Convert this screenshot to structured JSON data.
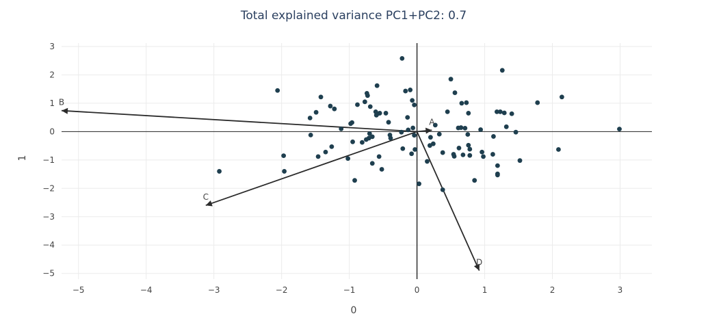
{
  "chart_data": {
    "type": "scatter",
    "title": "Total explained variance PC1+PC2: 0.7",
    "xlabel": "0",
    "ylabel": "1",
    "xlim": [
      -5.25,
      3.47
    ],
    "ylim": [
      -5.2,
      3.12
    ],
    "xticks": [
      -5,
      -4,
      -3,
      -2,
      -1,
      0,
      1,
      2,
      3
    ],
    "yticks": [
      -5,
      -4,
      -3,
      -2,
      -1,
      0,
      1,
      2,
      3
    ],
    "tick_labels_x": [
      "−5",
      "−4",
      "−3",
      "−2",
      "−1",
      "0",
      "1",
      "2",
      "3"
    ],
    "tick_labels_y": [
      "−5",
      "−4",
      "−3",
      "−2",
      "−1",
      "0",
      "1",
      "2",
      "3"
    ],
    "grid": true,
    "marker_color": "#1f3f4f",
    "points": [
      [
        -2.92,
        -1.4
      ],
      [
        -2.06,
        1.45
      ],
      [
        -1.97,
        -0.85
      ],
      [
        -1.96,
        -1.4
      ],
      [
        -1.58,
        0.48
      ],
      [
        -1.57,
        -0.12
      ],
      [
        -1.49,
        0.68
      ],
      [
        -1.46,
        -0.88
      ],
      [
        -1.42,
        1.22
      ],
      [
        -1.35,
        -0.72
      ],
      [
        -1.28,
        0.9
      ],
      [
        -1.26,
        -0.53
      ],
      [
        -1.22,
        0.8
      ],
      [
        -1.12,
        0.1
      ],
      [
        -1.02,
        -0.95
      ],
      [
        -0.98,
        0.28
      ],
      [
        -0.96,
        0.32
      ],
      [
        -0.95,
        -0.36
      ],
      [
        -0.92,
        -1.72
      ],
      [
        -0.88,
        0.95
      ],
      [
        -0.81,
        -0.38
      ],
      [
        -0.77,
        1.05
      ],
      [
        -0.75,
        -0.28
      ],
      [
        -0.74,
        1.35
      ],
      [
        -0.73,
        1.27
      ],
      [
        -0.71,
        -0.23
      ],
      [
        -0.7,
        -0.07
      ],
      [
        -0.69,
        0.88
      ],
      [
        -0.66,
        -1.12
      ],
      [
        -0.66,
        -0.18
      ],
      [
        -0.61,
        0.7
      ],
      [
        -0.6,
        0.58
      ],
      [
        -0.59,
        1.62
      ],
      [
        -0.58,
        0.63
      ],
      [
        -0.56,
        -0.88
      ],
      [
        -0.55,
        0.65
      ],
      [
        -0.52,
        -1.33
      ],
      [
        -0.46,
        0.65
      ],
      [
        -0.42,
        0.33
      ],
      [
        -0.4,
        -0.12
      ],
      [
        -0.39,
        -0.23
      ],
      [
        -0.23,
        -0.02
      ],
      [
        -0.22,
        2.58
      ],
      [
        -0.21,
        -0.6
      ],
      [
        -0.17,
        1.43
      ],
      [
        -0.14,
        0.5
      ],
      [
        -0.13,
        0.06
      ],
      [
        -0.1,
        1.47
      ],
      [
        -0.08,
        -0.78
      ],
      [
        -0.07,
        1.1
      ],
      [
        -0.06,
        0.13
      ],
      [
        -0.04,
        0.94
      ],
      [
        -0.03,
        -0.63
      ],
      [
        -0.04,
        -0.13
      ],
      [
        0.03,
        -1.84
      ],
      [
        0.15,
        -1.05
      ],
      [
        0.19,
        -0.49
      ],
      [
        0.2,
        -0.2
      ],
      [
        0.24,
        -0.43
      ],
      [
        0.27,
        0.23
      ],
      [
        0.33,
        -0.09
      ],
      [
        0.38,
        -2.05
      ],
      [
        0.38,
        -0.74
      ],
      [
        0.45,
        0.7
      ],
      [
        0.5,
        1.85
      ],
      [
        0.54,
        -0.8
      ],
      [
        0.55,
        -0.87
      ],
      [
        0.56,
        1.37
      ],
      [
        0.61,
        0.13
      ],
      [
        0.62,
        -0.58
      ],
      [
        0.65,
        0.14
      ],
      [
        0.66,
        1.0
      ],
      [
        0.68,
        -0.82
      ],
      [
        0.71,
        0.12
      ],
      [
        0.73,
        1.02
      ],
      [
        0.75,
        -0.1
      ],
      [
        0.76,
        0.65
      ],
      [
        0.76,
        -0.48
      ],
      [
        0.78,
        -0.62
      ],
      [
        0.78,
        -0.84
      ],
      [
        0.85,
        -1.72
      ],
      [
        0.94,
        0.07
      ],
      [
        0.96,
        -0.72
      ],
      [
        0.98,
        -0.88
      ],
      [
        1.12,
        -0.8
      ],
      [
        1.13,
        -0.17
      ],
      [
        1.18,
        0.7
      ],
      [
        1.19,
        -1.2
      ],
      [
        1.19,
        -1.49
      ],
      [
        1.19,
        -1.53
      ],
      [
        1.23,
        0.7
      ],
      [
        1.26,
        2.16
      ],
      [
        1.29,
        0.66
      ],
      [
        1.32,
        0.17
      ],
      [
        1.4,
        0.63
      ],
      [
        1.46,
        -0.02
      ],
      [
        1.52,
        -1.02
      ],
      [
        1.78,
        1.02
      ],
      [
        2.09,
        -0.63
      ],
      [
        2.14,
        1.22
      ],
      [
        2.99,
        0.09
      ]
    ],
    "loadings": [
      {
        "name": "A",
        "x": 0.22,
        "y": 0.05
      },
      {
        "name": "B",
        "x": -5.25,
        "y": 0.74
      },
      {
        "name": "C",
        "x": -3.12,
        "y": -2.6
      },
      {
        "name": "D",
        "x": 0.92,
        "y": -4.9
      }
    ]
  }
}
